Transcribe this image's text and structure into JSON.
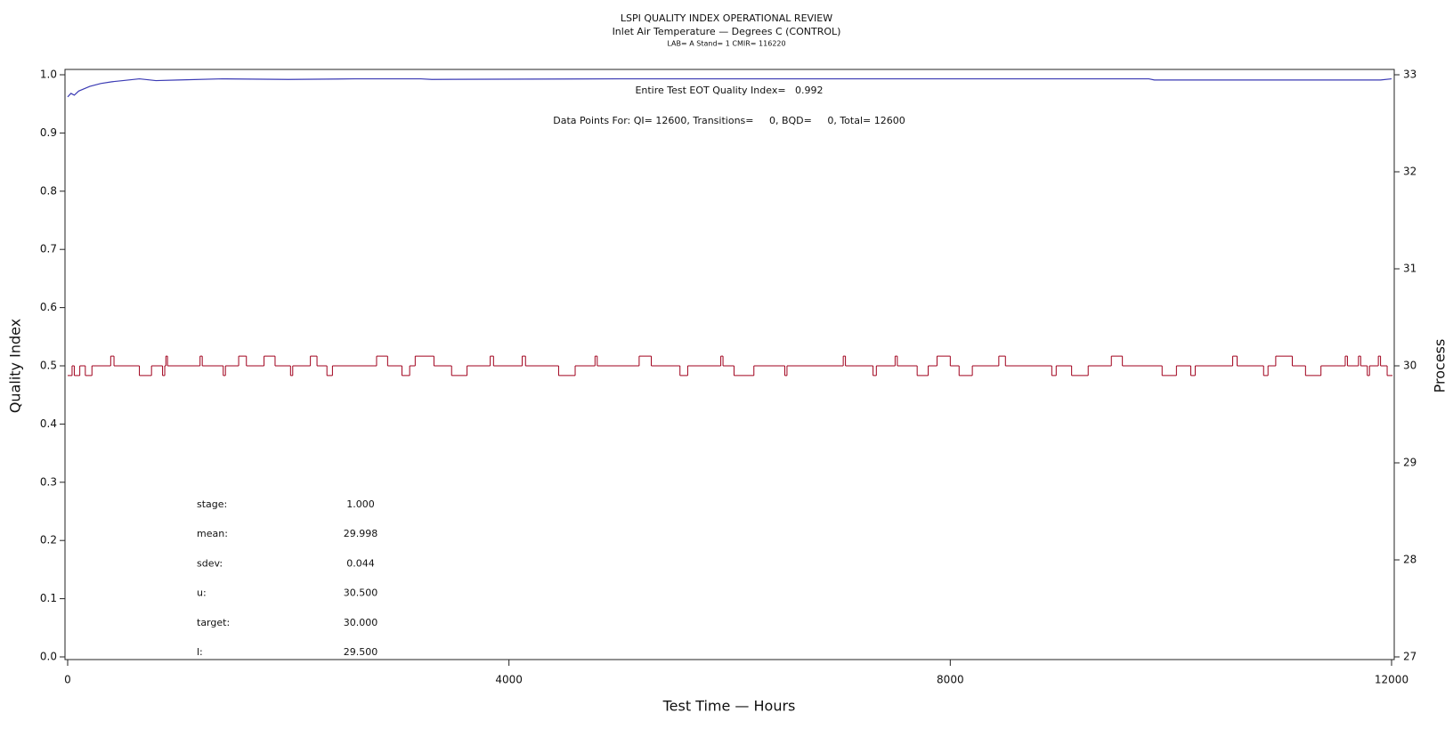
{
  "chart_data": {
    "type": "line",
    "title": "LSPI QUALITY INDEX OPERATIONAL REVIEW",
    "subtitle": "Inlet Air Temperature — Degrees C (CONTROL)",
    "subtitle2": "LAB= A Stand= 1 CMIR= 116220",
    "x_label": "Test Time — Hours",
    "y_label": "Quality Index",
    "y2_label": "Process",
    "annotations": [
      "Entire Test EOT Quality Index=   0.992",
      "Data Points For: QI= 12600, Transitions=     0, BQD=     0, Total= 12600"
    ],
    "stats": [
      {
        "label": "stage:",
        "value": "1.000"
      },
      {
        "label": "mean:",
        "value": "29.998"
      },
      {
        "label": "sdev:",
        "value": "0.044"
      },
      {
        "label": "u:",
        "value": "30.500"
      },
      {
        "label": "target:",
        "value": "30.000"
      },
      {
        "label": "l:",
        "value": "29.500"
      }
    ],
    "xlim": [
      0,
      12000
    ],
    "xticks": [
      0,
      4000,
      8000,
      12000
    ],
    "ylim": [
      0,
      1
    ],
    "yticks": [
      {
        "value": 0,
        "label": "0.0"
      },
      0.1,
      0.2,
      0.3,
      0.4,
      0.5,
      0.6,
      0.7,
      0.8,
      0.9,
      {
        "value": 1,
        "label": "1.0"
      }
    ],
    "y2lim": [
      27,
      33
    ],
    "y2ticks": [
      27,
      28,
      29,
      30,
      31,
      32,
      33
    ],
    "series": [
      {
        "color": "#3a3ab4",
        "x": [
          0,
          30,
          60,
          100,
          150,
          200,
          300,
          400,
          500,
          650,
          800,
          1000,
          1400,
          2000,
          2600,
          3200,
          3300,
          5000,
          9800,
          9850,
          11000,
          11900,
          12000
        ],
        "values": [
          0.962,
          0.968,
          0.965,
          0.972,
          0.976,
          0.98,
          0.985,
          0.988,
          0.99,
          0.993,
          0.99,
          0.991,
          0.993,
          0.992,
          0.993,
          0.993,
          0.992,
          0.993,
          0.993,
          0.991,
          0.991,
          0.991,
          0.993
        ]
      },
      {
        "color": "#a0001c",
        "axis": "y2",
        "step": true,
        "x": [
          0,
          40,
          60,
          110,
          160,
          220,
          390,
          420,
          650,
          760,
          860,
          880,
          890,
          905,
          1200,
          1220,
          1410,
          1430,
          1550,
          1620,
          1780,
          1880,
          2020,
          2040,
          2200,
          2260,
          2350,
          2400,
          2800,
          2900,
          3030,
          3100,
          3150,
          3320,
          3480,
          3620,
          3830,
          3860,
          4120,
          4150,
          4450,
          4600,
          4780,
          4800,
          5180,
          5290,
          5550,
          5620,
          5920,
          5940,
          6040,
          6220,
          6500,
          6520,
          7030,
          7050,
          7300,
          7330,
          7500,
          7520,
          7700,
          7800,
          7880,
          8000,
          8080,
          8200,
          8440,
          8500,
          8920,
          8960,
          9100,
          9250,
          9460,
          9560,
          9920,
          10050,
          10180,
          10220,
          10560,
          10600,
          10840,
          10880,
          10950,
          11100,
          11220,
          11360,
          11580,
          11600,
          11700,
          11720,
          11780,
          11800,
          11880,
          11900,
          11960,
          12000
        ],
        "values": [
          29.9,
          30,
          29.9,
          30,
          29.9,
          30,
          30.1,
          30,
          29.9,
          30,
          29.9,
          30,
          30.1,
          30,
          30.1,
          30,
          29.9,
          30,
          30.1,
          30,
          30.1,
          30,
          29.9,
          30,
          30.1,
          30,
          29.9,
          30,
          30.1,
          30,
          29.9,
          30,
          30.1,
          30,
          29.9,
          30,
          30.1,
          30,
          30.1,
          30,
          29.9,
          30,
          30.1,
          30,
          30.1,
          30,
          29.9,
          30,
          30.1,
          30,
          29.9,
          30,
          29.9,
          30,
          30.1,
          30,
          29.9,
          30,
          30.1,
          30,
          29.9,
          30,
          30.1,
          30,
          29.9,
          30,
          30.1,
          30,
          29.9,
          30,
          29.9,
          30,
          30.1,
          30,
          29.9,
          30,
          29.9,
          30,
          30.1,
          30,
          29.9,
          30,
          30.1,
          30,
          29.9,
          30,
          30.1,
          30,
          30.1,
          30,
          29.9,
          30,
          30.1,
          30,
          29.9,
          29.9
        ]
      }
    ]
  }
}
